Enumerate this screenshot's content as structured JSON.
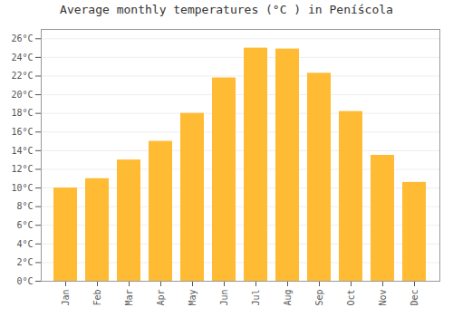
{
  "chart_data": {
    "type": "bar",
    "title": "Average monthly temperatures (°C ) in Pení́scola",
    "categories": [
      "Jan",
      "Feb",
      "Mar",
      "Apr",
      "May",
      "Jun",
      "Jul",
      "Aug",
      "Sep",
      "Oct",
      "Nov",
      "Dec"
    ],
    "values": [
      10.0,
      11.0,
      13.0,
      15.0,
      18.0,
      21.8,
      25.0,
      24.9,
      22.3,
      18.2,
      13.5,
      10.6
    ],
    "color": "#FFBB33",
    "ylim": [
      0,
      27
    ],
    "yticks": [
      {
        "value": 0,
        "label": "0°C"
      },
      {
        "value": 2,
        "label": "2°C"
      },
      {
        "value": 4,
        "label": "4°C"
      },
      {
        "value": 6,
        "label": "6°C"
      },
      {
        "value": 8,
        "label": "8°C"
      },
      {
        "value": 10,
        "label": "10°C"
      },
      {
        "value": 12,
        "label": "12°C"
      },
      {
        "value": 14,
        "label": "14°C"
      },
      {
        "value": 16,
        "label": "16°C"
      },
      {
        "value": 18,
        "label": "18°C"
      },
      {
        "value": 20,
        "label": "20°C"
      },
      {
        "value": 22,
        "label": "22°C"
      },
      {
        "value": 24,
        "label": "24°C"
      },
      {
        "value": 26,
        "label": "26°C"
      }
    ],
    "grid": true
  }
}
